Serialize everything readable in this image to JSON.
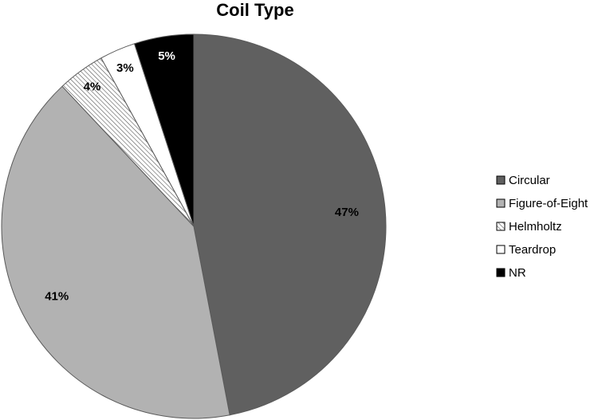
{
  "chart_data": {
    "type": "pie",
    "title": "Coil Type",
    "legend_position": "right",
    "slices": [
      {
        "label": "Circular",
        "value": 47,
        "display": "47%",
        "fill": "#606060",
        "pattern": "solid"
      },
      {
        "label": "Figure-of-Eight",
        "value": 41,
        "display": "41%",
        "fill": "#b2b2b2",
        "pattern": "solid"
      },
      {
        "label": "Helmholtz",
        "value": 4,
        "display": "4%",
        "fill": "#ffffff",
        "pattern": "diagonal-hatch"
      },
      {
        "label": "Teardrop",
        "value": 3,
        "display": "3%",
        "fill": "#ffffff",
        "pattern": "solid"
      },
      {
        "label": "NR",
        "value": 5,
        "display": "5%",
        "fill": "#000000",
        "pattern": "solid"
      }
    ]
  }
}
